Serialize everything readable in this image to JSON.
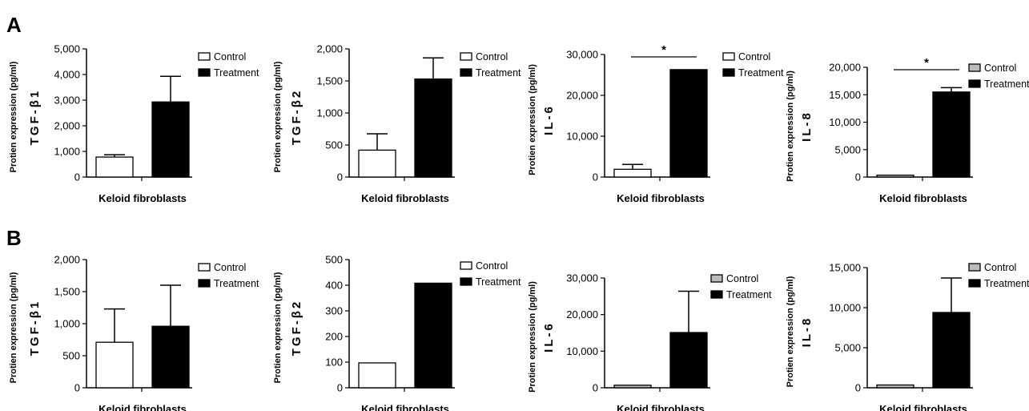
{
  "panel_labels": [
    "A",
    "B"
  ],
  "legend": {
    "control": "Control",
    "treatment": "Treatment"
  },
  "chart_data": [
    {
      "panel": "A",
      "type": "bar",
      "categories": [
        "Control",
        "Treatment"
      ],
      "values": [
        780,
        2930
      ],
      "errors": [
        90,
        1000
      ],
      "ylabel": "Protien expression (pg/ml)",
      "ylabel_sub": "TGF-β1",
      "xlabel": "Keloid fibroblasts",
      "ylim": [
        0,
        5000
      ],
      "yticks": [
        0,
        1000,
        2000,
        3000,
        4000,
        5000
      ],
      "significance": "",
      "control_color": "#ffffff"
    },
    {
      "panel": "A",
      "type": "bar",
      "categories": [
        "Control",
        "Treatment"
      ],
      "values": [
        420,
        1530
      ],
      "errors": [
        255,
        330
      ],
      "ylabel": "Protien expression (pg/ml)",
      "ylabel_sub": "TGF-β2",
      "xlabel": "Keloid fibroblasts",
      "ylim": [
        0,
        2000
      ],
      "yticks": [
        0,
        500,
        1000,
        1500,
        2000
      ],
      "significance": "",
      "control_color": "#ffffff"
    },
    {
      "panel": "A",
      "type": "bar",
      "categories": [
        "Control",
        "Treatment"
      ],
      "values": [
        1900,
        26300
      ],
      "errors": [
        1200,
        0
      ],
      "ylabel": "Protien expression (pg/ml)",
      "ylabel_sub": "IL-6",
      "xlabel": "Keloid fibroblasts",
      "ylim": [
        0,
        30000
      ],
      "yticks": [
        0,
        10000,
        20000,
        30000
      ],
      "significance": "*",
      "control_color": "#ffffff"
    },
    {
      "panel": "A",
      "type": "bar",
      "categories": [
        "Control",
        "Treatment"
      ],
      "values": [
        350,
        15500
      ],
      "errors": [
        0,
        800
      ],
      "ylabel": "Protien expression (pg/ml)",
      "ylabel_sub": "IL-8",
      "xlabel": "Keloid fibroblasts",
      "ylim": [
        0,
        20000
      ],
      "yticks": [
        0,
        5000,
        10000,
        15000,
        20000
      ],
      "significance": "*",
      "control_color": "#bbbbbb"
    },
    {
      "panel": "B",
      "type": "bar",
      "categories": [
        "Control",
        "Treatment"
      ],
      "values": [
        710,
        960
      ],
      "errors": [
        520,
        640
      ],
      "ylabel": "Protien expression (pg/ml)",
      "ylabel_sub": "TGF-β1",
      "xlabel": "Keloid fibroblasts",
      "ylim": [
        0,
        2000
      ],
      "yticks": [
        0,
        500,
        1000,
        1500,
        2000
      ],
      "significance": "",
      "control_color": "#ffffff"
    },
    {
      "panel": "B",
      "type": "bar",
      "categories": [
        "Control",
        "Treatment"
      ],
      "values": [
        97,
        408
      ],
      "errors": [
        0,
        0
      ],
      "ylabel": "Protien expression (pg/ml)",
      "ylabel_sub": "TGF-β2",
      "xlabel": "Keloid fibroblasts",
      "ylim": [
        0,
        500
      ],
      "yticks": [
        0,
        100,
        200,
        300,
        400,
        500
      ],
      "significance": "",
      "control_color": "#ffffff"
    },
    {
      "panel": "B",
      "type": "bar",
      "categories": [
        "Control",
        "Treatment"
      ],
      "values": [
        700,
        15100
      ],
      "errors": [
        0,
        11300
      ],
      "ylabel": "Protien expression (pg/ml)",
      "ylabel_sub": "IL-6",
      "xlabel": "Keloid fibroblasts",
      "ylim": [
        0,
        30000
      ],
      "yticks": [
        0,
        10000,
        20000,
        30000
      ],
      "significance": "",
      "control_color": "#bbbbbb"
    },
    {
      "panel": "B",
      "type": "bar",
      "categories": [
        "Control",
        "Treatment"
      ],
      "values": [
        350,
        9400
      ],
      "errors": [
        0,
        4300
      ],
      "ylabel": "Protien expression (pg/ml)",
      "ylabel_sub": "IL-8",
      "xlabel": "Keloid fibroblasts",
      "ylim": [
        0,
        15000
      ],
      "yticks": [
        0,
        5000,
        10000,
        15000
      ],
      "significance": "",
      "control_color": "#bbbbbb"
    }
  ]
}
